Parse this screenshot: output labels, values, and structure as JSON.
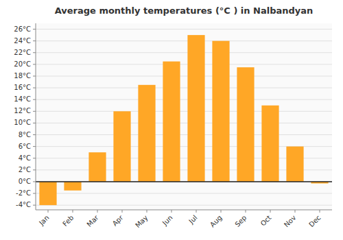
{
  "chart_data": {
    "type": "bar",
    "title": "Average monthly temperatures (°C ) in Nalbandyan",
    "categories": [
      "Jan",
      "Feb",
      "Mar",
      "Apr",
      "May",
      "Jun",
      "Jul",
      "Aug",
      "Sep",
      "Oct",
      "Nov",
      "Dec"
    ],
    "values": [
      -4.0,
      -1.5,
      5.0,
      12.0,
      16.5,
      20.5,
      25.0,
      24.0,
      19.5,
      13.0,
      6.0,
      -0.3
    ],
    "color": "#FFA726",
    "ylim": [
      -4.8,
      27
    ],
    "yticks": [
      {
        "value": 26,
        "label": "26°C"
      },
      {
        "value": 24,
        "label": "24°C"
      },
      {
        "value": 22,
        "label": "22°C"
      },
      {
        "value": 20,
        "label": "20°C"
      },
      {
        "value": 18,
        "label": "18°C"
      },
      {
        "value": 16,
        "label": "16°C"
      },
      {
        "value": 14,
        "label": "14°C"
      },
      {
        "value": 12,
        "label": "12°C"
      },
      {
        "value": 10,
        "label": "10°C"
      },
      {
        "value": 8,
        "label": "8°C"
      },
      {
        "value": 6,
        "label": "6°C"
      },
      {
        "value": 4,
        "label": "4°C"
      },
      {
        "value": 2,
        "label": "2°C"
      },
      {
        "value": 0,
        "label": "0°C"
      },
      {
        "value": -2,
        "label": "-2°C"
      },
      {
        "value": -4,
        "label": "-4°C"
      }
    ],
    "grid": true
  }
}
